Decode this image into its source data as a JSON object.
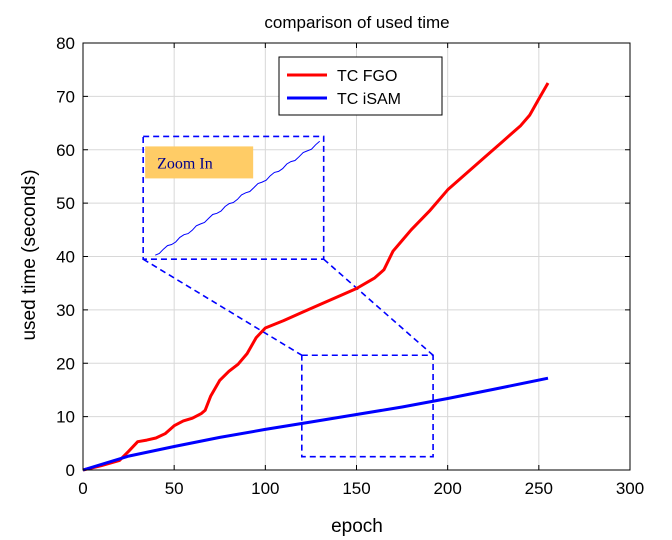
{
  "chart_data": {
    "type": "line",
    "title": "comparison of used time",
    "xlabel": "epoch",
    "ylabel": "used time (seconds)",
    "xlim": [
      0,
      300
    ],
    "ylim": [
      0,
      80
    ],
    "xticks": [
      0,
      50,
      100,
      150,
      200,
      250,
      300
    ],
    "yticks": [
      0,
      10,
      20,
      30,
      40,
      50,
      60,
      70,
      80
    ],
    "grid": true,
    "legend_position": "top-center",
    "series": [
      {
        "name": "TC FGO",
        "color": "#ff0000",
        "x": [
          0,
          10,
          20,
          25,
          30,
          35,
          40,
          45,
          50,
          55,
          60,
          65,
          67,
          70,
          75,
          80,
          85,
          90,
          95,
          100,
          110,
          120,
          130,
          140,
          150,
          160,
          165,
          170,
          175,
          180,
          190,
          200,
          210,
          220,
          230,
          240,
          245,
          250,
          255
        ],
        "y": [
          0,
          0.8,
          1.8,
          3.5,
          5.3,
          5.6,
          6.0,
          6.8,
          8.3,
          9.2,
          9.7,
          10.6,
          11.2,
          13.8,
          16.8,
          18.5,
          19.8,
          21.8,
          24.8,
          26.6,
          28.0,
          29.5,
          31.0,
          32.5,
          34.0,
          36.0,
          37.5,
          41.0,
          43.0,
          45.0,
          48.5,
          52.5,
          55.5,
          58.5,
          61.5,
          64.5,
          66.5,
          69.5,
          72.5
        ]
      },
      {
        "name": "TC iSAM",
        "color": "#0000ff",
        "x": [
          0,
          25,
          50,
          75,
          100,
          125,
          150,
          175,
          200,
          225,
          255
        ],
        "y": [
          0,
          2.6,
          4.4,
          6.1,
          7.6,
          9.0,
          10.4,
          11.8,
          13.4,
          15.1,
          17.2
        ]
      }
    ],
    "annotation": {
      "label": "Zoom In",
      "label_bg": "#ffcc66",
      "label_color": "#00008b",
      "zoom_region": {
        "x": [
          120,
          192
        ],
        "y": [
          2.5,
          21.5
        ]
      },
      "inset_box": {
        "x": [
          33,
          132
        ],
        "y": [
          39.5,
          62.5
        ]
      },
      "line_color": "#0000ff"
    }
  }
}
